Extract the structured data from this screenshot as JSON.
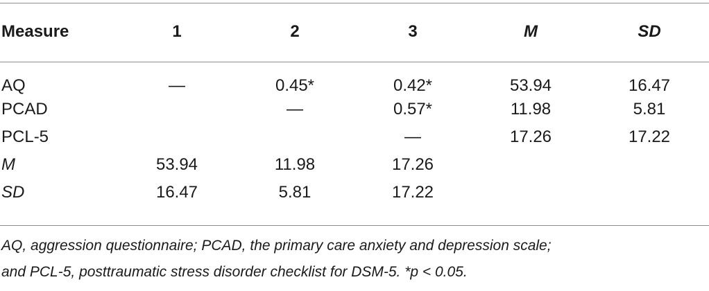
{
  "table": {
    "headers": [
      {
        "label": "Measure",
        "italic": false
      },
      {
        "label": "1",
        "italic": false
      },
      {
        "label": "2",
        "italic": false
      },
      {
        "label": "3",
        "italic": false
      },
      {
        "label": "M",
        "italic": true
      },
      {
        "label": "SD",
        "italic": true
      }
    ],
    "rows": [
      {
        "label": "AQ",
        "italic": false,
        "cells": [
          "—",
          "0.45*",
          "0.42*",
          "53.94",
          "16.47"
        ]
      },
      {
        "label": "PCAD",
        "italic": false,
        "cells": [
          "",
          "—",
          "0.57*",
          "11.98",
          "5.81"
        ]
      },
      {
        "label": "PCL-5",
        "italic": false,
        "cells": [
          "",
          "",
          "—",
          "17.26",
          "17.22"
        ]
      },
      {
        "label": "M",
        "italic": true,
        "cells": [
          "53.94",
          "11.98",
          "17.26",
          "",
          ""
        ]
      },
      {
        "label": "SD",
        "italic": true,
        "cells": [
          "16.47",
          "5.81",
          "17.22",
          "",
          ""
        ]
      }
    ]
  },
  "footnote": {
    "line1": "AQ, aggression questionnaire; PCAD, the primary care anxiety and depression scale;",
    "line2": "and PCL-5, posttraumatic stress disorder checklist for DSM-5. *p < 0.05."
  }
}
